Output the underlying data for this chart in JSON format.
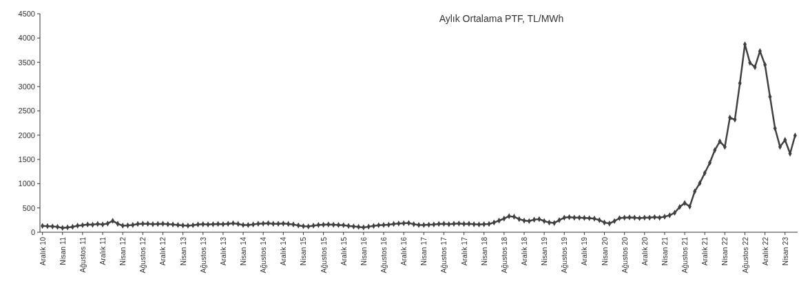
{
  "chart_data": {
    "type": "line",
    "title": "Aylık Ortalama PTF, TL/MWh",
    "categories": [
      "Aralık 10",
      null,
      null,
      null,
      "Nisan 11",
      null,
      null,
      null,
      "Ağustos 11",
      null,
      null,
      null,
      "Aralık 11",
      null,
      null,
      null,
      "Nisan 12",
      null,
      null,
      null,
      "Ağustos 12",
      null,
      null,
      null,
      "Aralık 12",
      null,
      null,
      null,
      "Nisan 13",
      null,
      null,
      null,
      "Ağustos 13",
      null,
      null,
      null,
      "Aralık 13",
      null,
      null,
      null,
      "Nisan 14",
      null,
      null,
      null,
      "Ağustos 14",
      null,
      null,
      null,
      "Aralık 14",
      null,
      null,
      null,
      "Nisan 15",
      null,
      null,
      null,
      "Ağustos 15",
      null,
      null,
      null,
      "Aralık 15",
      null,
      null,
      null,
      "Nisan 16",
      null,
      null,
      null,
      "Ağustos 16",
      null,
      null,
      null,
      "Aralık 16",
      null,
      null,
      null,
      "Nisan 17",
      null,
      null,
      null,
      "Ağustos 17",
      null,
      null,
      null,
      "Aralık 17",
      null,
      null,
      null,
      "Nisan 18",
      null,
      null,
      null,
      "Ağustos 18",
      null,
      null,
      null,
      "Aralık 18",
      null,
      null,
      null,
      "Nisan 19",
      null,
      null,
      null,
      "Ağustos 19",
      null,
      null,
      null,
      "Aralık 19",
      null,
      null,
      null,
      "Nisan 20",
      null,
      null,
      null,
      "Ağustos 20",
      null,
      null,
      null,
      "Aralık 20",
      null,
      null,
      null,
      "Nisan 21",
      null,
      null,
      null,
      "Ağustos 21",
      null,
      null,
      null,
      "Aralık 21",
      null,
      null,
      null,
      "Nisan 22",
      null,
      null,
      null,
      "Ağustos 22",
      null,
      null,
      null,
      "Aralık 22",
      null,
      null,
      null,
      "Nisan 23",
      null,
      null
    ],
    "values": [
      130,
      125,
      120,
      110,
      90,
      100,
      110,
      135,
      145,
      160,
      155,
      170,
      160,
      180,
      235,
      175,
      135,
      140,
      150,
      170,
      175,
      175,
      165,
      170,
      175,
      165,
      160,
      150,
      140,
      135,
      145,
      160,
      165,
      160,
      165,
      170,
      165,
      175,
      185,
      170,
      150,
      150,
      160,
      175,
      180,
      185,
      175,
      175,
      180,
      170,
      160,
      140,
      125,
      120,
      135,
      150,
      155,
      160,
      155,
      150,
      145,
      130,
      120,
      110,
      100,
      115,
      130,
      145,
      150,
      155,
      170,
      180,
      185,
      190,
      165,
      150,
      150,
      155,
      160,
      170,
      175,
      165,
      175,
      180,
      170,
      175,
      165,
      160,
      165,
      170,
      200,
      240,
      280,
      330,
      320,
      270,
      240,
      230,
      260,
      270,
      230,
      200,
      190,
      250,
      300,
      310,
      300,
      300,
      295,
      290,
      280,
      250,
      200,
      180,
      230,
      290,
      300,
      305,
      300,
      290,
      300,
      300,
      310,
      300,
      320,
      350,
      400,
      520,
      600,
      530,
      840,
      1010,
      1220,
      1430,
      1690,
      1870,
      1760,
      2360,
      2320,
      3070,
      3870,
      3490,
      3400,
      3730,
      3450,
      2790,
      2140,
      1760,
      1900,
      1620,
      1990
    ],
    "color": "#404040",
    "marker": "diamond",
    "line_style": "solid",
    "ylim": [
      0,
      4500
    ],
    "yticks": [
      0,
      500,
      1000,
      1500,
      2000,
      2500,
      3000,
      3500,
      4000,
      4500
    ],
    "grid": false
  }
}
